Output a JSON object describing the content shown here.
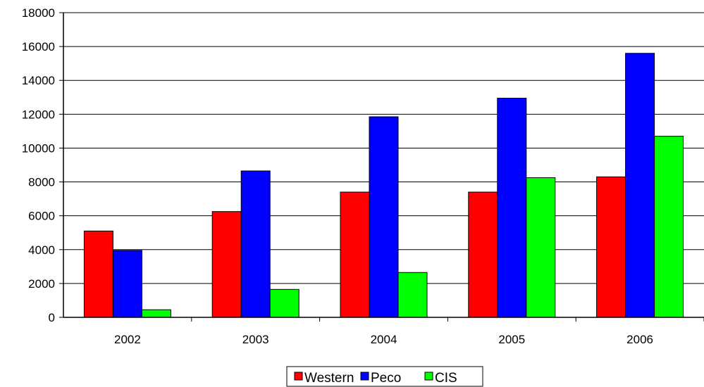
{
  "chart_data": {
    "type": "bar",
    "categories": [
      "2002",
      "2003",
      "2004",
      "2005",
      "2006"
    ],
    "series": [
      {
        "name": "Western",
        "color": "#ff0000",
        "values": [
          5100,
          6250,
          7400,
          7400,
          8300
        ]
      },
      {
        "name": "Peco",
        "color": "#0000ff",
        "values": [
          3950,
          8650,
          11850,
          12950,
          15600
        ]
      },
      {
        "name": "CIS",
        "color": "#00ff00",
        "values": [
          450,
          1650,
          2650,
          8250,
          10700
        ]
      }
    ],
    "y_ticks": [
      "0",
      "2000",
      "4000",
      "6000",
      "8000",
      "10000",
      "12000",
      "14000",
      "16000",
      "18000"
    ],
    "ylim": [
      0,
      18000
    ],
    "grid": true,
    "legend_position": "bottom",
    "title": "",
    "xlabel": "",
    "ylabel": ""
  }
}
